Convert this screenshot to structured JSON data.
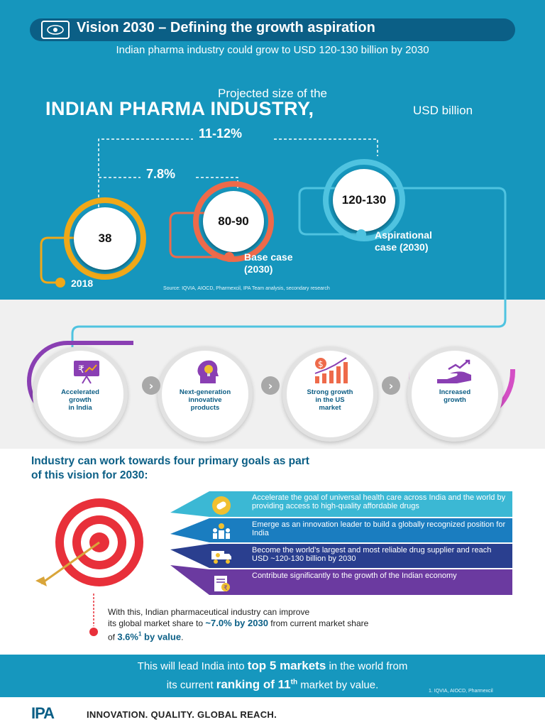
{
  "header": {
    "title": "Vision 2030 – Defining the growth aspiration",
    "subtitle": "Indian pharma industry could grow to USD 120-130 billion by 2030",
    "title_icon": "target-eye-icon"
  },
  "projection": {
    "line1": "Projected size of the",
    "line2": "INDIAN PHARMA INDUSTRY,",
    "unit": "USD billion",
    "growth_outer": "11-12%",
    "growth_inner": "7.8%",
    "source": "Source: IQVIA, AIOCD, Pharmexcil, IPA Team analysis, secondary research",
    "points": [
      {
        "value": "38",
        "label": "2018",
        "color": "#f0a818"
      },
      {
        "value": "80-90",
        "label_line1": "Base case",
        "label_line2": "(2030)",
        "color": "#ee6a4a"
      },
      {
        "value": "120-130",
        "label_line1": "Aspirational",
        "label_line2": "case (2030)",
        "color": "#4fc3e0"
      }
    ]
  },
  "drivers": [
    {
      "label_line1": "Accelerated",
      "label_line2": "growth",
      "label_line3": "in India",
      "icon": "presentation-rupee-icon"
    },
    {
      "label_line1": "Next-generation",
      "label_line2": "innovative",
      "label_line3": "products",
      "icon": "head-lightbulb-icon"
    },
    {
      "label_line1": "Strong growth",
      "label_line2": "in the US",
      "label_line3": "market",
      "icon": "dollar-bar-chart-icon"
    },
    {
      "label_line1": "Increased",
      "label_line2": "growth",
      "label_line3": "",
      "icon": "hand-growth-arrow-icon"
    }
  ],
  "goals": {
    "heading_line1": "Industry can work towards four primary goals as part",
    "heading_line2": "of this vision for 2030:",
    "items": [
      {
        "text": "Accelerate the goal of universal health care across India and the world by providing access to high-quality affordable drugs",
        "icon": "pills-icon",
        "color": "#3bb8d4"
      },
      {
        "text": "Emerge as an innovation leader to build a globally recognized position for India",
        "icon": "people-innovation-icon",
        "color": "#1a7dc0"
      },
      {
        "text": "Become the world’s largest and most reliable drug supplier and reach USD ~120-130 billion by 2030",
        "icon": "delivery-truck-icon",
        "color": "#2a3f8f"
      },
      {
        "text": "Contribute significantly to the growth of the Indian economy",
        "icon": "rupee-document-icon",
        "color": "#6b3aa0"
      }
    ]
  },
  "market_share": {
    "line1": "With this, Indian pharmaceutical industry can improve",
    "line2_a": "its global market share to ",
    "line2_b": "~7.0% by 2030",
    "line2_c": " from current market share",
    "line3_a": "of ",
    "line3_b": "3.6%",
    "line3_sup": "1",
    "line3_c": " by value",
    "line3_d": "."
  },
  "band": {
    "line1_a": "This will lead India into ",
    "line1_b": "top 5 markets",
    "line1_c": " in the world from",
    "line2_a": "its current ",
    "line2_b": "ranking of 11",
    "line2_sup": "th",
    "line2_c": " market by value.",
    "footnote": "1. IQVIA, AIOCD, Pharmexcil"
  },
  "footer": {
    "logo": "IPA",
    "tagline": "INNOVATION. QUALITY. GLOBAL REACH."
  }
}
